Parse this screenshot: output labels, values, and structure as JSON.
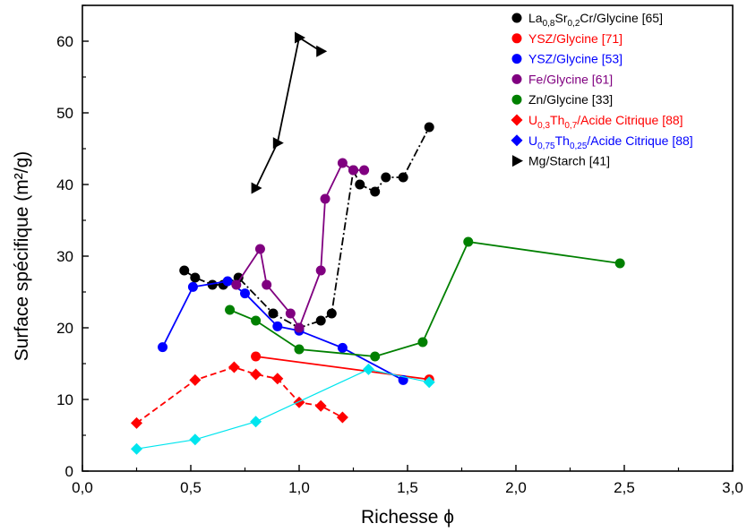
{
  "chart_data": {
    "type": "scatter",
    "xlabel": "Richesse ϕ",
    "ylabel": "Surface spécifique (m²/g)",
    "xlim": [
      0,
      3
    ],
    "ylim": [
      0,
      65
    ],
    "x_ticks": [
      "0,0",
      "0,5",
      "1,0",
      "1,5",
      "2,0",
      "2,5",
      "3,0"
    ],
    "x_tick_values": [
      0,
      0.5,
      1,
      1.5,
      2,
      2.5,
      3
    ],
    "y_ticks": [
      "0",
      "10",
      "20",
      "30",
      "40",
      "50",
      "60"
    ],
    "y_tick_values": [
      0,
      10,
      20,
      30,
      40,
      50,
      60
    ],
    "grid": false,
    "legend_position": "top-right",
    "series": [
      {
        "name": "La0,8Sr0,2Cr/Glycine [65]",
        "legend_parts": [
          {
            "t": "La"
          },
          {
            "t": "0,8",
            "sub": true
          },
          {
            "t": "Sr"
          },
          {
            "t": "0,2",
            "sub": true
          },
          {
            "t": "Cr/Glycine [65]"
          }
        ],
        "color": "#000000",
        "marker": "circle",
        "line_style": "dashdot",
        "legend_text_color": "#000000",
        "x": [
          0.47,
          0.52,
          0.6,
          0.65,
          0.72,
          0.88,
          1.0,
          1.1,
          1.15,
          1.25,
          1.28,
          1.35,
          1.4,
          1.48,
          1.6
        ],
        "y": [
          28,
          27,
          26,
          26,
          27,
          22,
          20,
          21,
          22,
          42,
          40,
          39,
          41,
          41,
          48
        ]
      },
      {
        "name": "YSZ/Glycine [71]",
        "legend_parts": [
          {
            "t": "YSZ/Glycine [71]"
          }
        ],
        "color": "#ff0000",
        "marker": "circle",
        "line_style": "solid",
        "legend_text_color": "#ff0000",
        "x": [
          0.8,
          1.6
        ],
        "y": [
          16,
          12.8
        ]
      },
      {
        "name": "YSZ/Glycine [53]",
        "legend_parts": [
          {
            "t": "YSZ/Glycine [53]"
          }
        ],
        "color": "#0000ff",
        "marker": "circle",
        "line_style": "solid",
        "legend_text_color": "#0000ff",
        "x": [
          0.37,
          0.51,
          0.67,
          0.75,
          0.9,
          1.0,
          1.2,
          1.48
        ],
        "y": [
          17.3,
          25.7,
          26.5,
          24.8,
          20.2,
          19.6,
          17.2,
          12.7
        ]
      },
      {
        "name": "Fe/Glycine [61]",
        "legend_parts": [
          {
            "t": "Fe/Glycine [61]"
          }
        ],
        "color": "#800080",
        "marker": "circle",
        "line_style": "solid",
        "legend_text_color": "#800080",
        "x": [
          0.71,
          0.82,
          0.85,
          0.96,
          1.0,
          1.1,
          1.12,
          1.2,
          1.25,
          1.3
        ],
        "y": [
          26,
          31,
          26,
          22,
          20,
          28,
          38,
          43,
          42,
          42
        ]
      },
      {
        "name": "Zn/Glycine [33]",
        "legend_parts": [
          {
            "t": "Zn/Glycine [33]"
          }
        ],
        "color": "#008000",
        "marker": "circle",
        "line_style": "solid",
        "legend_text_color": "#000000",
        "x": [
          0.68,
          0.8,
          1.0,
          1.35,
          1.57,
          1.78,
          2.48
        ],
        "y": [
          22.5,
          21,
          17,
          16,
          18,
          32,
          29
        ]
      },
      {
        "name": "U0,3Th0,7/Acide Citrique [88]",
        "legend_parts": [
          {
            "t": "U"
          },
          {
            "t": "0,3",
            "sub": true
          },
          {
            "t": "Th"
          },
          {
            "t": "0,7",
            "sub": true
          },
          {
            "t": "/Acide Citrique [88]"
          }
        ],
        "color": "#ff0000",
        "marker": "diamond",
        "line_style": "dashed",
        "legend_text_color": "#ff0000",
        "x": [
          0.25,
          0.52,
          0.7,
          0.8,
          0.9,
          1.0,
          1.1,
          1.2
        ],
        "y": [
          6.7,
          12.7,
          14.5,
          13.5,
          12.9,
          9.6,
          9.1,
          7.5
        ]
      },
      {
        "name": "U0,75Th0,25/Acide Citrique [88]",
        "legend_parts": [
          {
            "t": "U"
          },
          {
            "t": "0,75",
            "sub": true
          },
          {
            "t": "Th"
          },
          {
            "t": "0,25",
            "sub": true
          },
          {
            "t": "/Acide Citrique [88]"
          }
        ],
        "color": "#0000ff",
        "marker": "diamond",
        "line_style": "solid",
        "legend_text_color": "#0000ff",
        "x": [],
        "y": []
      },
      {
        "name": "Mg/Starch [41]",
        "legend_parts": [
          {
            "t": "Mg/Starch [41]"
          }
        ],
        "color": "#000000",
        "marker": "triangle-right",
        "line_style": "solid",
        "legend_text_color": "#000000",
        "x": [
          0.8,
          0.9,
          1.0,
          1.1
        ],
        "y": [
          39.5,
          45.8,
          60.5,
          58.6
        ]
      },
      {
        "color": "#00e5ee",
        "marker": "diamond",
        "line_style": "solid",
        "in_legend": false,
        "x": [
          0.25,
          0.52,
          0.8,
          1.32,
          1.6
        ],
        "y": [
          3.1,
          4.4,
          6.9,
          14.2,
          12.4
        ]
      }
    ]
  }
}
